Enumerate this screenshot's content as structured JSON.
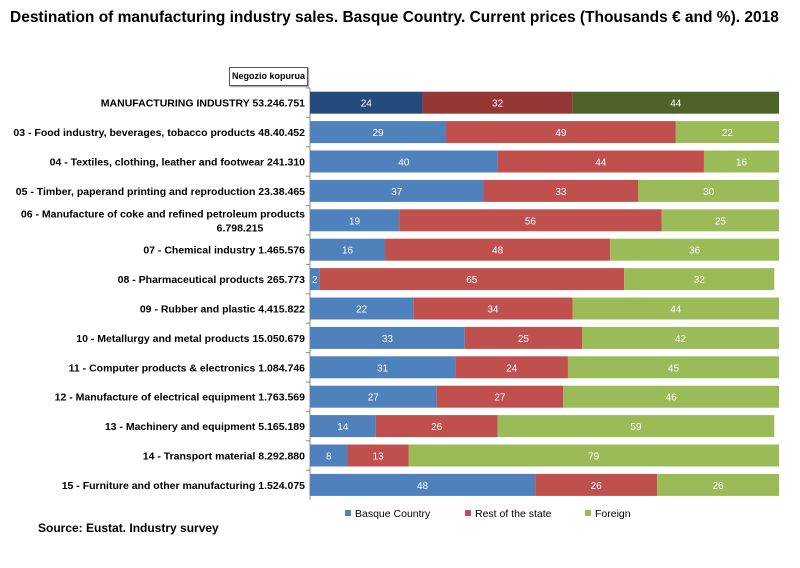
{
  "chart_data": {
    "type": "bar",
    "orientation": "horizontal",
    "stacked": "100%",
    "title": "Destination of manufacturing industry sales. Basque Country. Current prices (Thousands € and %).  2018",
    "header_box": "Negozio kopurua",
    "source": "Source: Eustat. Industry survey",
    "xlim": [
      0,
      100
    ],
    "legend_position": "bottom",
    "categories": [
      "MANUFACTURING INDUSTRY 53.246.751",
      "03 - Food industry, beverages, tobacco products 48.40.452",
      "04 - Textiles, clothing, leather and footwear   241.310",
      "05 - Timber, paperand printing and reproduction 23.38.465",
      "06 - Manufacture of coke and refined petroleum products|6.798.215",
      "07 - Chemical industry 1.465.576",
      "08 - Pharmaceutical products 265.773",
      "09 - Rubber and plastic 4.415.822",
      "10 - Metallurgy and metal products 15.050.679",
      "11 - Computer products & electronics 1.084.746",
      "12 - Manufacture of electrical equipment 1.763.569",
      "13 - Machinery and equipment 5.165.189",
      "14 - Transport material 8.292.880",
      "15 - Furniture and other manufacturing 1.524.075"
    ],
    "series": [
      {
        "name": "Basque Country",
        "color": "#4F81BD",
        "highlight_color": "#254A7E",
        "values": [
          24,
          29,
          40,
          37,
          19,
          16,
          2,
          22,
          33,
          31,
          27,
          14,
          8,
          48
        ]
      },
      {
        "name": "Rest of the state",
        "color": "#C0504D",
        "highlight_color": "#953735",
        "values": [
          32,
          49,
          44,
          33,
          56,
          48,
          65,
          34,
          25,
          24,
          27,
          26,
          13,
          26
        ]
      },
      {
        "name": "Foreign",
        "color": "#9BBB59",
        "highlight_color": "#4F6228",
        "values": [
          44,
          22,
          16,
          30,
          25,
          36,
          32,
          44,
          42,
          45,
          46,
          59,
          79,
          26
        ]
      }
    ]
  }
}
